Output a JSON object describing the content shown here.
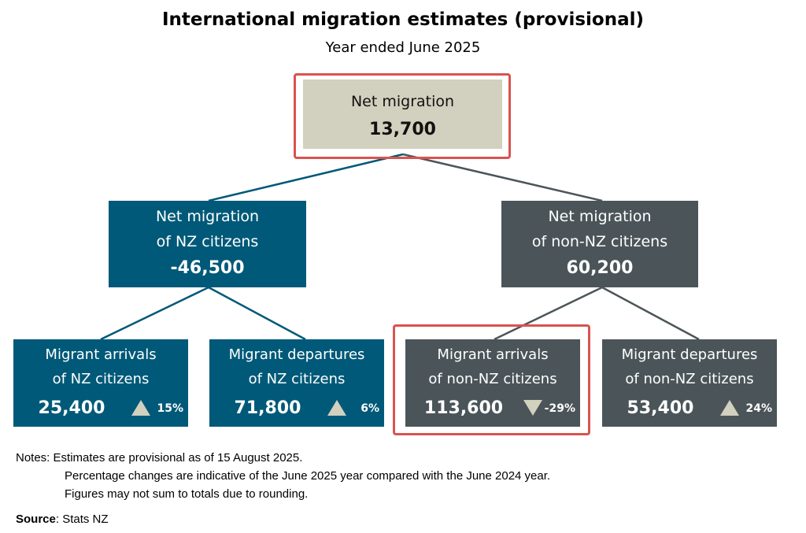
{
  "title": "International migration estimates (provisional)",
  "subtitle": "Year ended June 2025",
  "root": {
    "label": "Net migration",
    "value": "13,700"
  },
  "nz": {
    "label1": "Net migration",
    "label2": "of NZ citizens",
    "value": "-46,500"
  },
  "nonnz": {
    "label1": "Net migration",
    "label2": "of non-NZ citizens",
    "value": "60,200"
  },
  "leaves": [
    {
      "label1": "Migrant arrivals",
      "label2": "of NZ citizens",
      "value": "25,400",
      "direction": "up",
      "change": "15%"
    },
    {
      "label1": "Migrant departures",
      "label2": "of NZ citizens",
      "value": "71,800",
      "direction": "up",
      "change": "6%"
    },
    {
      "label1": "Migrant arrivals",
      "label2": "of non-NZ citizens",
      "value": "113,600",
      "direction": "down",
      "change": "-29%"
    },
    {
      "label1": "Migrant departures",
      "label2": "of non-NZ citizens",
      "value": "53,400",
      "direction": "up",
      "change": "24%"
    }
  ],
  "notes": {
    "prefix": "Notes:",
    "line1": "Estimates are provisional as of 15 August 2025.",
    "line2": "Percentage changes are indicative of the June 2025 year compared with the June 2024 year.",
    "line3": "Figures may not sum to totals due to rounding."
  },
  "source": {
    "label": "Source",
    "text": ": Stats NZ"
  },
  "colors": {
    "nz": "#005978",
    "non_nz": "#4b5559",
    "root": "#d2d0be",
    "highlight": "#d9534f",
    "triangle": "#d2d0be"
  }
}
